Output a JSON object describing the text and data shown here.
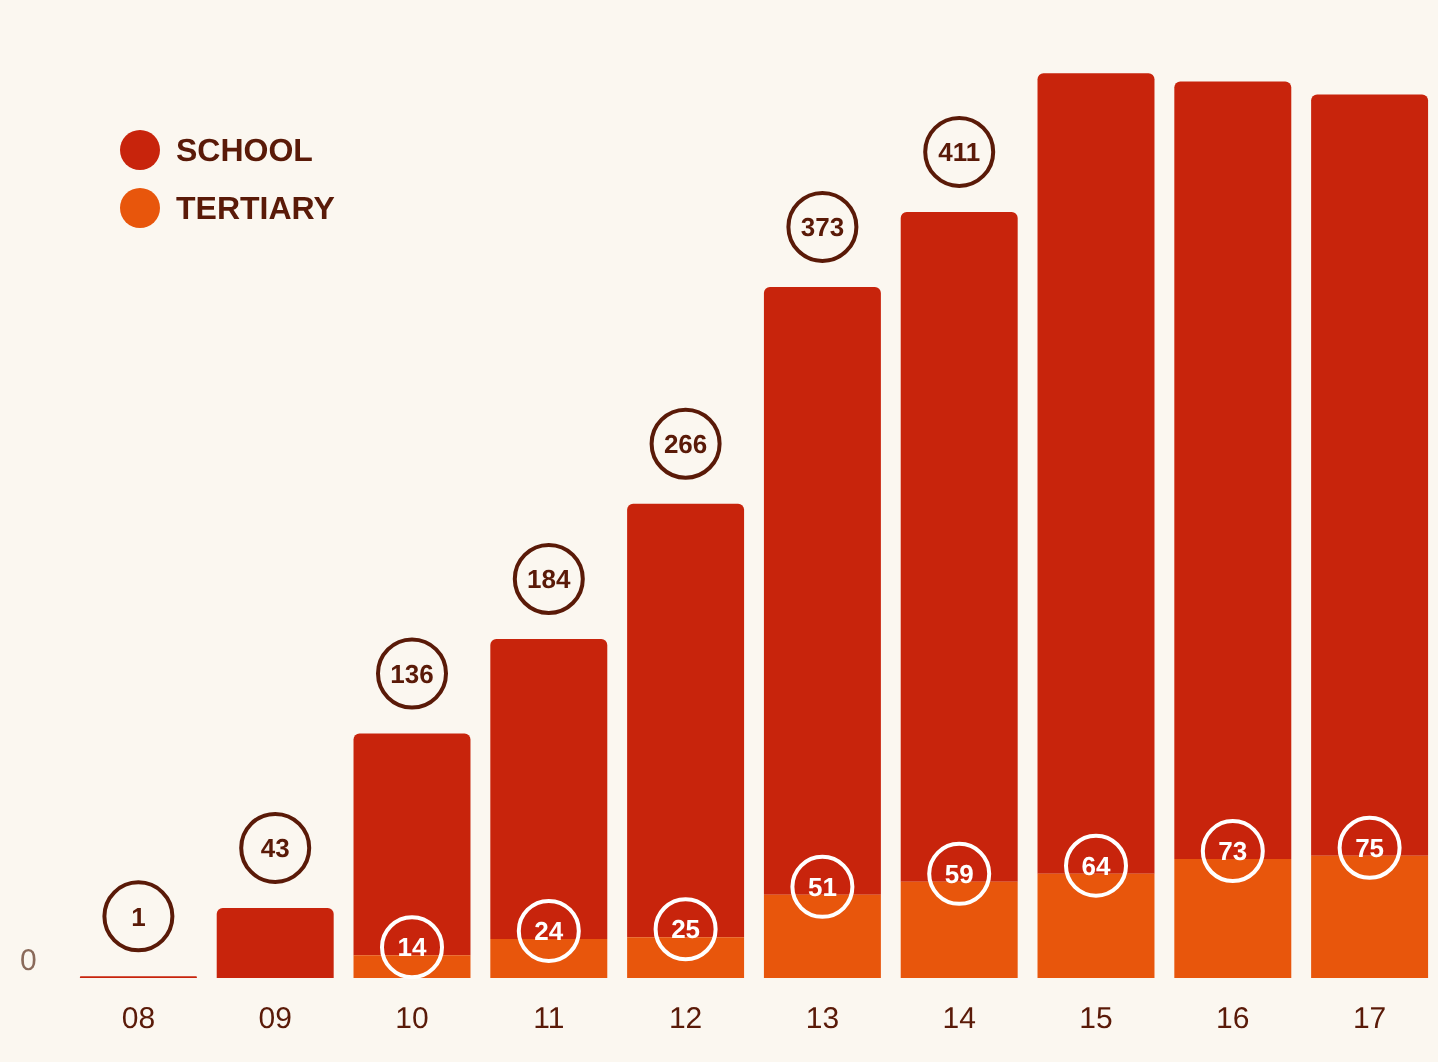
{
  "chart_data": {
    "type": "bar",
    "categories": [
      "08",
      "09",
      "10",
      "11",
      "12",
      "13",
      "14",
      "15",
      "16",
      "17"
    ],
    "stacked": true,
    "series": [
      {
        "name": "TERTIARY",
        "color": "#e8560c",
        "values": [
          null,
          null,
          14,
          24,
          25,
          51,
          59,
          64,
          73,
          75
        ],
        "value_labels": [
          null,
          null,
          "14",
          "24",
          "25",
          "51",
          "59",
          "64",
          "73",
          "75"
        ]
      },
      {
        "name": "SCHOOL",
        "color": "#c8240c",
        "values": [
          1,
          43,
          136,
          184,
          266,
          373,
          411,
          491,
          477,
          467
        ],
        "value_labels": [
          "1",
          "43",
          "136",
          "184",
          "266",
          "373",
          "411",
          null,
          null,
          null
        ]
      }
    ],
    "annotations": [
      "0"
    ],
    "grid": false,
    "legend": "top left"
  }
}
